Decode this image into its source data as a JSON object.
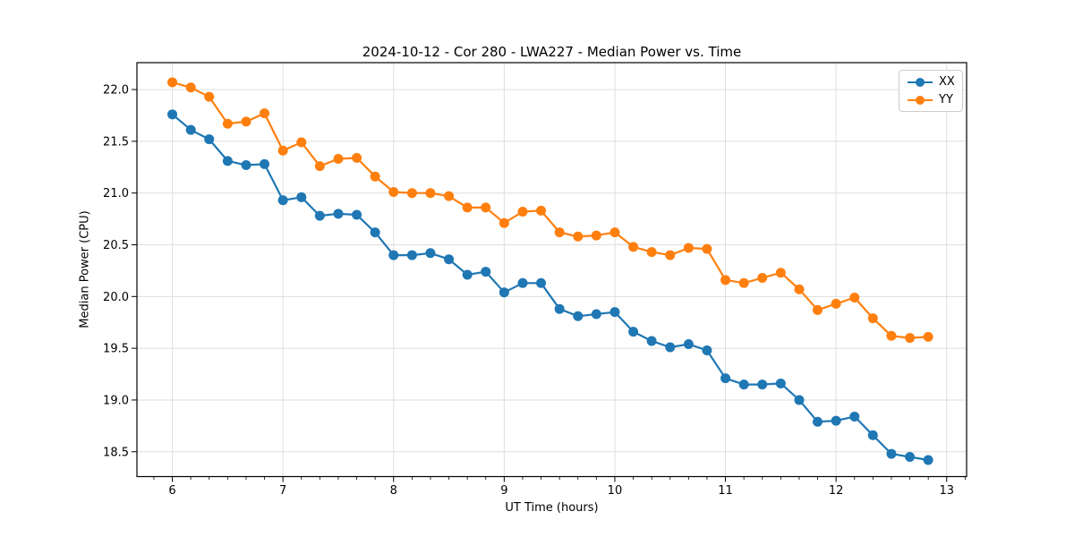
{
  "figure": {
    "title": "2024-10-12 - Cor 280 - LWA227 - Median Power vs. Time"
  },
  "chart_data": {
    "type": "line",
    "title": "2024-10-12 - Cor 280 - LWA227 - Median Power vs. Time",
    "xlabel": "UT Time (hours)",
    "ylabel": "Median Power (CPU)",
    "x": [
      6.0,
      6.167,
      6.333,
      6.5,
      6.667,
      6.833,
      7.0,
      7.167,
      7.333,
      7.5,
      7.667,
      7.833,
      8.0,
      8.167,
      8.333,
      8.5,
      8.667,
      8.833,
      9.0,
      9.167,
      9.333,
      9.5,
      9.667,
      9.833,
      10.0,
      10.167,
      10.333,
      10.5,
      10.667,
      10.833,
      11.0,
      11.167,
      11.333,
      11.5,
      11.667,
      11.833,
      12.0,
      12.167,
      12.333,
      12.5,
      12.667,
      12.833
    ],
    "series": [
      {
        "name": "XX",
        "color": "#1f77b4",
        "values": [
          21.76,
          21.61,
          21.52,
          21.31,
          21.27,
          21.28,
          20.93,
          20.96,
          20.78,
          20.8,
          20.79,
          20.62,
          20.4,
          20.4,
          20.42,
          20.36,
          20.21,
          20.24,
          20.04,
          20.13,
          20.13,
          19.88,
          19.81,
          19.83,
          19.85,
          19.66,
          19.57,
          19.51,
          19.54,
          19.48,
          19.21,
          19.15,
          19.15,
          19.16,
          19.0,
          18.79,
          18.8,
          18.84,
          18.66,
          18.48,
          18.45,
          18.42
        ]
      },
      {
        "name": "YY",
        "color": "#ff7f0e",
        "values": [
          22.07,
          22.02,
          21.93,
          21.67,
          21.69,
          21.77,
          21.41,
          21.49,
          21.26,
          21.33,
          21.34,
          21.16,
          21.01,
          21.0,
          21.0,
          20.97,
          20.86,
          20.86,
          20.71,
          20.82,
          20.83,
          20.62,
          20.58,
          20.59,
          20.62,
          20.48,
          20.43,
          20.4,
          20.47,
          20.46,
          20.16,
          20.13,
          20.18,
          20.23,
          20.07,
          19.87,
          19.93,
          19.99,
          19.79,
          19.62,
          19.6,
          19.61
        ]
      }
    ],
    "xlim": [
      5.68,
      13.18
    ],
    "ylim": [
      18.26,
      22.26
    ],
    "x_ticks": [
      6,
      7,
      8,
      9,
      10,
      11,
      12,
      13
    ],
    "x_minor_divisions": 6,
    "y_ticks": [
      18.5,
      19.0,
      19.5,
      20.0,
      20.5,
      21.0,
      21.5,
      22.0
    ],
    "grid": true,
    "grid_color": "#dedede",
    "spine_color": "#000000",
    "legend_position": "upper right",
    "marker": "circle",
    "line_width": 2.2,
    "marker_radius": 5.5
  }
}
